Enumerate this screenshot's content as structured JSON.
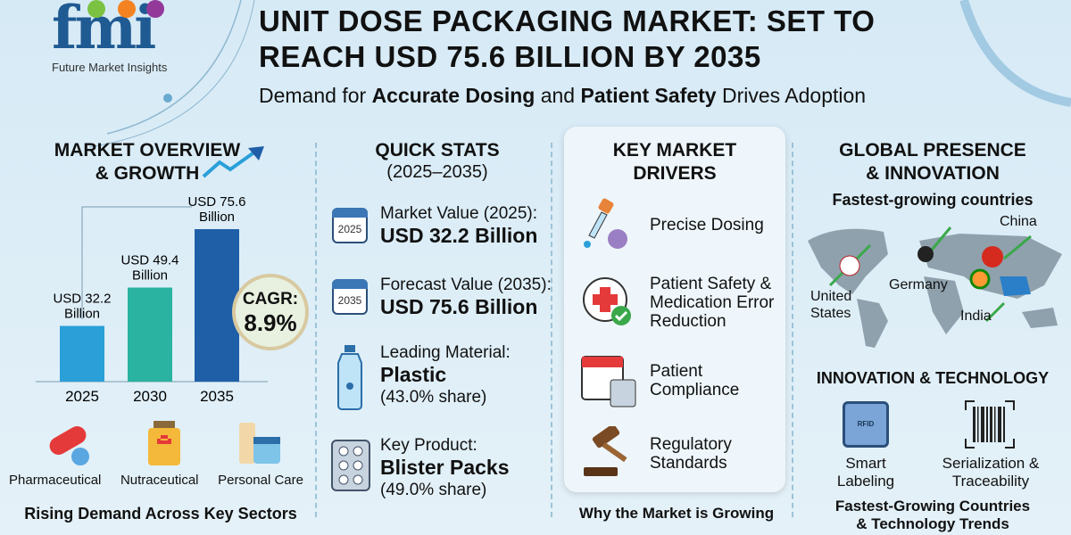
{
  "logo": {
    "text": "fmi",
    "tagline": "Future Market Insights"
  },
  "header": {
    "title_line1": "UNIT DOSE PACKAGING MARKET: SET TO",
    "title_line2": "REACH USD 75.6 BILLION BY 2035",
    "subtitle_pre": "Demand for ",
    "subtitle_b1": "Accurate Dosing",
    "subtitle_mid": " and ",
    "subtitle_b2": "Patient Safety",
    "subtitle_post": " Drives Adoption"
  },
  "overview": {
    "title1": "MARKET OVERVIEW",
    "title2": "& GROWTH",
    "cagr_label": "CAGR:",
    "cagr_value": "8.9%",
    "sectors": [
      "Pharmaceutical",
      "Nutraceutical",
      "Personal Care"
    ],
    "footer": "Rising Demand Across Key Sectors"
  },
  "chart_data": {
    "type": "bar",
    "categories": [
      "2025",
      "2030",
      "2035"
    ],
    "values": [
      32.2,
      49.4,
      75.6
    ],
    "data_labels": [
      [
        "USD 32.2",
        "Billion"
      ],
      [
        "USD 49.4",
        "Billion"
      ],
      [
        "USD 75.6",
        "Billion"
      ]
    ],
    "colors": [
      "#2a9fd8",
      "#2ab3a0",
      "#1f5fa8"
    ],
    "unit": "USD Billion"
  },
  "quick_stats": {
    "title": "QUICK STATS",
    "period": "(2025–2035)",
    "items": [
      {
        "icon": "calendar-icon",
        "icon_text": "2025",
        "label": "Market Value (2025):",
        "value": "USD 32.2 Billion"
      },
      {
        "icon": "calendar-icon",
        "icon_text": "2035",
        "label": "Forecast Value (2035):",
        "value": "USD 75.6 Billion"
      },
      {
        "icon": "bottle-icon",
        "label": "Leading Material:",
        "value": "Plastic",
        "share": "(43.0% share)"
      },
      {
        "icon": "blister-pack-icon",
        "label": "Key Product:",
        "value": "Blister Packs",
        "share": "(49.0% share)"
      }
    ]
  },
  "drivers": {
    "title1": "KEY MARKET",
    "title2": "DRIVERS",
    "items": [
      [
        "Precise Dosing"
      ],
      [
        "Patient Safety &",
        "Medication Error",
        "Reduction"
      ],
      [
        "Patient",
        "Compliance"
      ],
      [
        "Regulatory",
        "Standards"
      ]
    ],
    "footer": "Why the Market is Growing"
  },
  "global": {
    "title1": "GLOBAL PRESENCE",
    "title2": "& INNOVATION",
    "subtitle": "Fastest-growing countries",
    "countries": [
      "United",
      "States",
      "Germany",
      "China",
      "India"
    ],
    "innovation_title": "INNOVATION & TECHNOLOGY",
    "rfid": "RFID",
    "tech": [
      [
        "Smart",
        "Labeling"
      ],
      [
        "Serialization &",
        "Traceability"
      ]
    ],
    "footer1": "Fastest-Growing Countries",
    "footer2": "& Technology Trends"
  }
}
